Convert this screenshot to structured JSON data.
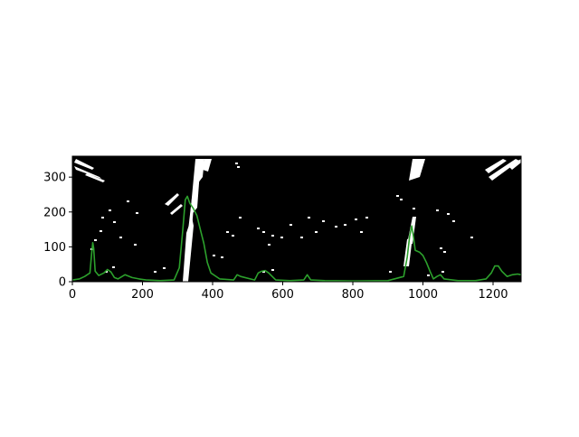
{
  "chart_data": {
    "type": "line",
    "title": "",
    "xlabel": "",
    "ylabel": "",
    "xlim": [
      0,
      1280
    ],
    "ylim": [
      0,
      360
    ],
    "xticks": [
      0,
      200,
      400,
      600,
      800,
      1000,
      1200
    ],
    "yticks": [
      0,
      100,
      200,
      300
    ],
    "grid": false,
    "legend": "none",
    "background_image": "binary-thresholded-lane-image",
    "series": [
      {
        "color": "#2ca02c",
        "x": [
          0,
          20,
          35,
          50,
          55,
          58,
          61,
          65,
          75,
          90,
          100,
          110,
          120,
          130,
          150,
          170,
          190,
          210,
          250,
          290,
          305,
          315,
          322,
          328,
          335,
          345,
          355,
          365,
          375,
          385,
          395,
          420,
          460,
          470,
          480,
          520,
          530,
          540,
          550,
          560,
          580,
          620,
          660,
          670,
          680,
          720,
          800,
          900,
          945,
          955,
          962,
          968,
          972,
          978,
          990,
          1000,
          1010,
          1020,
          1030,
          1040,
          1050,
          1060,
          1100,
          1150,
          1180,
          1195,
          1205,
          1215,
          1225,
          1240,
          1255,
          1270,
          1280
        ],
        "y": [
          5,
          8,
          15,
          25,
          80,
          112,
          95,
          30,
          18,
          25,
          35,
          28,
          12,
          8,
          20,
          12,
          8,
          5,
          3,
          5,
          40,
          150,
          235,
          245,
          225,
          210,
          190,
          150,
          110,
          55,
          25,
          8,
          5,
          20,
          15,
          5,
          25,
          30,
          32,
          25,
          5,
          3,
          5,
          20,
          5,
          3,
          2,
          3,
          15,
          70,
          130,
          160,
          135,
          90,
          85,
          75,
          55,
          30,
          8,
          15,
          20,
          8,
          3,
          3,
          8,
          25,
          45,
          45,
          30,
          15,
          20,
          22,
          20
        ]
      }
    ]
  }
}
